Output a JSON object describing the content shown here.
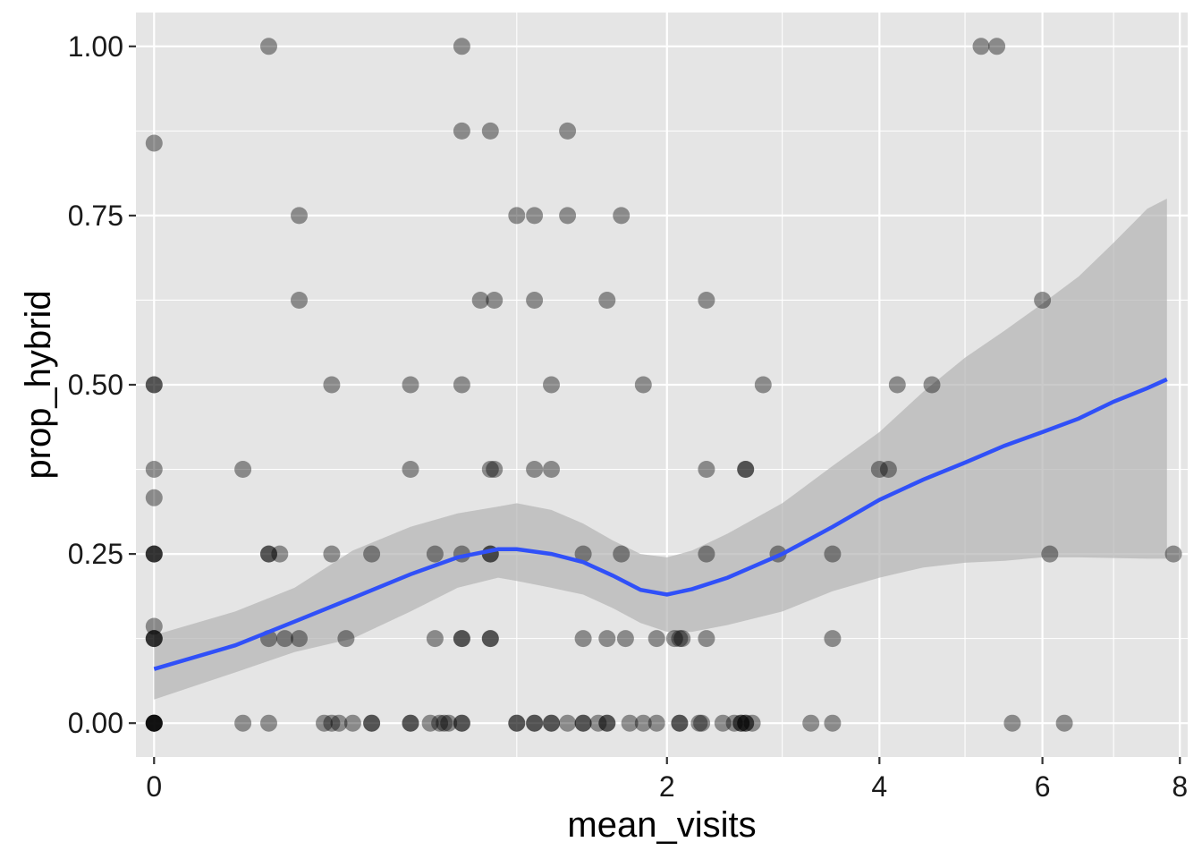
{
  "chart_data": {
    "type": "scatter",
    "title": "",
    "xlabel": "mean_visits",
    "ylabel": "prop_hybrid",
    "x_scale": "sqrt",
    "xlim": [
      -0.03,
      8.1
    ],
    "ylim": [
      -0.05,
      1.05
    ],
    "x_ticks": [
      0,
      2,
      4,
      6,
      8
    ],
    "y_ticks": [
      0,
      0.25,
      0.5,
      0.75,
      1.0
    ],
    "y_tick_labels": [
      "0.00",
      "0.25",
      "0.50",
      "0.75",
      "1.00"
    ],
    "grid": true,
    "legend": "none",
    "colors": {
      "panel": "#e5e5e5",
      "grid": "#ffffff",
      "point": "#000000",
      "smooth_line": "#3050f8",
      "ribbon": "#b3b3b3"
    },
    "points": [
      {
        "x": 0,
        "y": 0.857
      },
      {
        "x": 0,
        "y": 0.5
      },
      {
        "x": 0,
        "y": 0.5
      },
      {
        "x": 0,
        "y": 0.375
      },
      {
        "x": 0,
        "y": 0.333
      },
      {
        "x": 0,
        "y": 0.25
      },
      {
        "x": 0,
        "y": 0.25
      },
      {
        "x": 0,
        "y": 0.25
      },
      {
        "x": 0,
        "y": 0.143
      },
      {
        "x": 0,
        "y": 0.125
      },
      {
        "x": 0,
        "y": 0.125
      },
      {
        "x": 0,
        "y": 0.125
      },
      {
        "x": 0,
        "y": 0
      },
      {
        "x": 0,
        "y": 0
      },
      {
        "x": 0,
        "y": 0
      },
      {
        "x": 0,
        "y": 0
      },
      {
        "x": 0,
        "y": 0
      },
      {
        "x": 0.06,
        "y": 0.375
      },
      {
        "x": 0.06,
        "y": 0
      },
      {
        "x": 0.1,
        "y": 1.0
      },
      {
        "x": 0.1,
        "y": 0.25
      },
      {
        "x": 0.1,
        "y": 0.25
      },
      {
        "x": 0.1,
        "y": 0.125
      },
      {
        "x": 0.1,
        "y": 0
      },
      {
        "x": 0.12,
        "y": 0.25
      },
      {
        "x": 0.13,
        "y": 0.125
      },
      {
        "x": 0.16,
        "y": 0.75
      },
      {
        "x": 0.16,
        "y": 0.625
      },
      {
        "x": 0.16,
        "y": 0.125
      },
      {
        "x": 0.24,
        "y": 0.5
      },
      {
        "x": 0.24,
        "y": 0.25
      },
      {
        "x": 0.24,
        "y": 0
      },
      {
        "x": 0.22,
        "y": 0
      },
      {
        "x": 0.26,
        "y": 0
      },
      {
        "x": 0.28,
        "y": 0.125
      },
      {
        "x": 0.3,
        "y": 0
      },
      {
        "x": 0.36,
        "y": 0.25
      },
      {
        "x": 0.36,
        "y": 0
      },
      {
        "x": 0.36,
        "y": 0
      },
      {
        "x": 0.5,
        "y": 0.5
      },
      {
        "x": 0.5,
        "y": 0.375
      },
      {
        "x": 0.5,
        "y": 0
      },
      {
        "x": 0.5,
        "y": 0
      },
      {
        "x": 0.58,
        "y": 0
      },
      {
        "x": 0.6,
        "y": 0.25
      },
      {
        "x": 0.6,
        "y": 0.125
      },
      {
        "x": 0.62,
        "y": 0
      },
      {
        "x": 0.64,
        "y": 0
      },
      {
        "x": 0.66,
        "y": 0
      },
      {
        "x": 0.72,
        "y": 1.0
      },
      {
        "x": 0.72,
        "y": 0.875
      },
      {
        "x": 0.72,
        "y": 0.5
      },
      {
        "x": 0.72,
        "y": 0.25
      },
      {
        "x": 0.72,
        "y": 0.125
      },
      {
        "x": 0.72,
        "y": 0.125
      },
      {
        "x": 0.72,
        "y": 0
      },
      {
        "x": 0.72,
        "y": 0
      },
      {
        "x": 0.81,
        "y": 0.625
      },
      {
        "x": 0.86,
        "y": 0.875
      },
      {
        "x": 0.86,
        "y": 0.375
      },
      {
        "x": 0.86,
        "y": 0.25
      },
      {
        "x": 0.86,
        "y": 0.25
      },
      {
        "x": 0.86,
        "y": 0.125
      },
      {
        "x": 0.86,
        "y": 0.125
      },
      {
        "x": 0.88,
        "y": 0.625
      },
      {
        "x": 0.88,
        "y": 0.375
      },
      {
        "x": 1.0,
        "y": 0.75
      },
      {
        "x": 1.0,
        "y": 0
      },
      {
        "x": 1.0,
        "y": 0
      },
      {
        "x": 1.1,
        "y": 0.75
      },
      {
        "x": 1.1,
        "y": 0.625
      },
      {
        "x": 1.1,
        "y": 0.375
      },
      {
        "x": 1.1,
        "y": 0
      },
      {
        "x": 1.1,
        "y": 0
      },
      {
        "x": 1.2,
        "y": 0.5
      },
      {
        "x": 1.2,
        "y": 0.375
      },
      {
        "x": 1.2,
        "y": 0
      },
      {
        "x": 1.2,
        "y": 0
      },
      {
        "x": 1.3,
        "y": 0.875
      },
      {
        "x": 1.3,
        "y": 0.75
      },
      {
        "x": 1.3,
        "y": 0
      },
      {
        "x": 1.4,
        "y": 0.25
      },
      {
        "x": 1.4,
        "y": 0.125
      },
      {
        "x": 1.4,
        "y": 0
      },
      {
        "x": 1.4,
        "y": 0
      },
      {
        "x": 1.5,
        "y": 0
      },
      {
        "x": 1.56,
        "y": 0.625
      },
      {
        "x": 1.56,
        "y": 0.125
      },
      {
        "x": 1.56,
        "y": 0
      },
      {
        "x": 1.56,
        "y": 0
      },
      {
        "x": 1.66,
        "y": 0.75
      },
      {
        "x": 1.66,
        "y": 0.25
      },
      {
        "x": 1.69,
        "y": 0.125
      },
      {
        "x": 1.72,
        "y": 0
      },
      {
        "x": 1.82,
        "y": 0.5
      },
      {
        "x": 1.82,
        "y": 0
      },
      {
        "x": 1.92,
        "y": 0.125
      },
      {
        "x": 1.92,
        "y": 0
      },
      {
        "x": 2.06,
        "y": 0.125
      },
      {
        "x": 2.1,
        "y": 0.125
      },
      {
        "x": 2.1,
        "y": 0
      },
      {
        "x": 2.1,
        "y": 0
      },
      {
        "x": 2.12,
        "y": 0.125
      },
      {
        "x": 2.26,
        "y": 0
      },
      {
        "x": 2.28,
        "y": 0
      },
      {
        "x": 2.32,
        "y": 0.625
      },
      {
        "x": 2.32,
        "y": 0.375
      },
      {
        "x": 2.32,
        "y": 0.25
      },
      {
        "x": 2.32,
        "y": 0.125
      },
      {
        "x": 2.46,
        "y": 0
      },
      {
        "x": 2.56,
        "y": 0
      },
      {
        "x": 2.62,
        "y": 0
      },
      {
        "x": 2.62,
        "y": 0
      },
      {
        "x": 2.66,
        "y": 0.375
      },
      {
        "x": 2.66,
        "y": 0
      },
      {
        "x": 2.66,
        "y": 0
      },
      {
        "x": 2.66,
        "y": 0.375
      },
      {
        "x": 2.72,
        "y": 0
      },
      {
        "x": 2.82,
        "y": 0.5
      },
      {
        "x": 2.96,
        "y": 0.25
      },
      {
        "x": 3.28,
        "y": 0
      },
      {
        "x": 3.5,
        "y": 0.25
      },
      {
        "x": 3.5,
        "y": 0.125
      },
      {
        "x": 3.5,
        "y": 0
      },
      {
        "x": 4.0,
        "y": 0.375
      },
      {
        "x": 4.1,
        "y": 0.375
      },
      {
        "x": 4.2,
        "y": 0.5
      },
      {
        "x": 4.6,
        "y": 0.5
      },
      {
        "x": 5.2,
        "y": 1.0
      },
      {
        "x": 5.4,
        "y": 1.0
      },
      {
        "x": 5.6,
        "y": 0
      },
      {
        "x": 6.0,
        "y": 0.625
      },
      {
        "x": 6.1,
        "y": 0.25
      },
      {
        "x": 6.3,
        "y": 0
      },
      {
        "x": 7.9,
        "y": 0.25
      }
    ],
    "smooth": {
      "method": "loess",
      "x": [
        0,
        0.05,
        0.15,
        0.3,
        0.5,
        0.7,
        0.9,
        1.0,
        1.2,
        1.4,
        1.6,
        1.8,
        2.0,
        2.2,
        2.5,
        3.0,
        3.5,
        4.0,
        4.5,
        5.0,
        5.5,
        6.0,
        6.5,
        7.0,
        7.5,
        7.8
      ],
      "y": [
        0.08,
        0.115,
        0.15,
        0.185,
        0.22,
        0.245,
        0.257,
        0.257,
        0.25,
        0.238,
        0.218,
        0.197,
        0.19,
        0.198,
        0.215,
        0.25,
        0.29,
        0.33,
        0.36,
        0.385,
        0.41,
        0.43,
        0.45,
        0.475,
        0.495,
        0.508
      ],
      "lower": [
        0.035,
        0.075,
        0.105,
        0.125,
        0.165,
        0.2,
        0.215,
        0.21,
        0.2,
        0.19,
        0.17,
        0.148,
        0.135,
        0.135,
        0.145,
        0.165,
        0.195,
        0.215,
        0.23,
        0.237,
        0.24,
        0.245,
        0.245,
        0.244,
        0.243,
        0.243
      ],
      "upper": [
        0.13,
        0.165,
        0.2,
        0.255,
        0.29,
        0.31,
        0.32,
        0.325,
        0.315,
        0.295,
        0.27,
        0.25,
        0.245,
        0.255,
        0.28,
        0.325,
        0.38,
        0.43,
        0.49,
        0.54,
        0.58,
        0.62,
        0.66,
        0.71,
        0.76,
        0.775
      ]
    }
  }
}
